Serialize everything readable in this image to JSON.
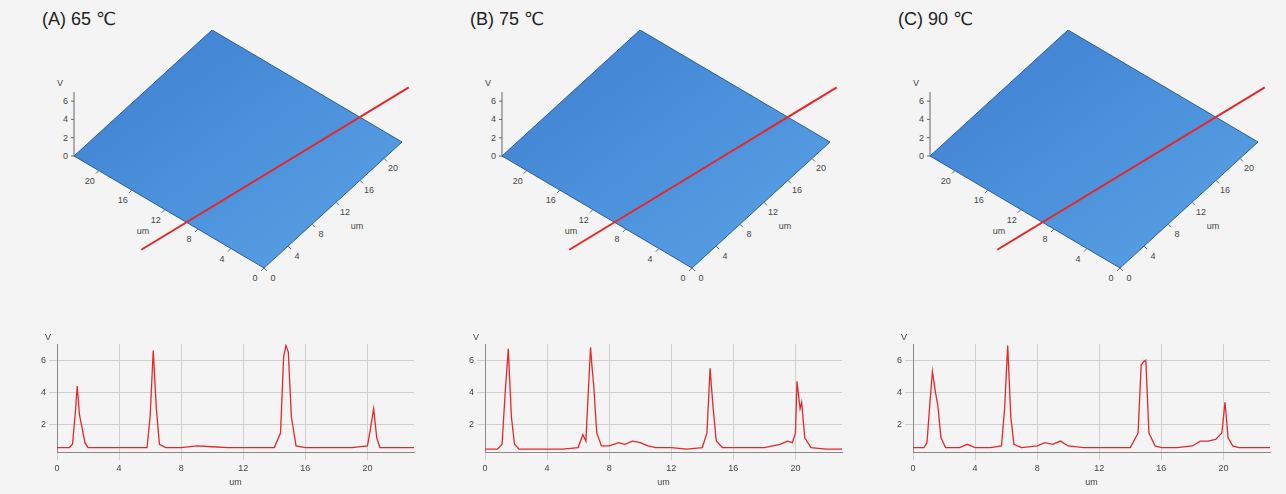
{
  "chart_data": [
    {
      "type": "line",
      "title": "(A) 65 ℃",
      "x_label": "um",
      "y_label": "V",
      "color": "#e8262a",
      "grid": true,
      "xlim": [
        0,
        23
      ],
      "ylim": [
        0.3,
        7
      ],
      "xticks": [
        0,
        4,
        8,
        12,
        16,
        20
      ],
      "yticks": [
        2,
        4,
        6
      ],
      "x": [
        0,
        0.8,
        1.0,
        1.2,
        1.3,
        1.45,
        1.6,
        1.8,
        2.0,
        3,
        4,
        5,
        5.8,
        6.0,
        6.2,
        6.4,
        6.6,
        7,
        8,
        9,
        10,
        11,
        12,
        13,
        14,
        14.4,
        14.6,
        14.75,
        14.9,
        15.1,
        15.4,
        16,
        17,
        18,
        19,
        20,
        20.2,
        20.4,
        20.6,
        20.8,
        21.5,
        22,
        23
      ],
      "values": [
        0.6,
        0.6,
        0.8,
        3.0,
        4.4,
        2.6,
        1.9,
        0.9,
        0.6,
        0.6,
        0.6,
        0.6,
        0.6,
        2.5,
        6.6,
        3.0,
        0.8,
        0.6,
        0.6,
        0.7,
        0.65,
        0.6,
        0.6,
        0.6,
        0.6,
        1.5,
        6.2,
        6.9,
        6.5,
        2.5,
        0.7,
        0.6,
        0.6,
        0.6,
        0.6,
        0.7,
        1.8,
        3.0,
        1.2,
        0.6,
        0.6,
        0.6,
        0.6
      ],
      "surface": {
        "z_label": "V",
        "zlim": [
          0,
          7
        ],
        "zticks": [
          0,
          2,
          4,
          6
        ],
        "x_label": "um",
        "xlim": [
          0,
          23
        ],
        "xticks": [
          0,
          4,
          8,
          12,
          16,
          20
        ],
        "y_label": "um",
        "ylim": [
          0,
          23
        ],
        "yticks": [
          0,
          4,
          8,
          12,
          16,
          20
        ]
      }
    },
    {
      "type": "line",
      "title": "(B)  75 ℃",
      "x_label": "um",
      "y_label": "V",
      "color": "#e8262a",
      "grid": true,
      "xlim": [
        0,
        23
      ],
      "ylim": [
        0.3,
        7
      ],
      "xticks": [
        0,
        4,
        8,
        12,
        16,
        20
      ],
      "yticks": [
        2,
        4,
        6
      ],
      "x": [
        0,
        0.8,
        1.1,
        1.3,
        1.5,
        1.7,
        1.9,
        2.2,
        3,
        4,
        5,
        6,
        6.3,
        6.5,
        6.6,
        6.8,
        6.9,
        7.0,
        7.2,
        7.5,
        8,
        8.6,
        9,
        9.5,
        10,
        10.5,
        11,
        12,
        13,
        14,
        14.3,
        14.5,
        14.7,
        14.9,
        15.3,
        16,
        17,
        18,
        19,
        19.5,
        19.8,
        20.0,
        20.1,
        20.3,
        20.4,
        20.6,
        21,
        22,
        23
      ],
      "values": [
        0.5,
        0.5,
        0.8,
        4.0,
        6.7,
        2.5,
        0.8,
        0.5,
        0.5,
        0.5,
        0.5,
        0.6,
        1.4,
        1.0,
        3.0,
        6.8,
        5.5,
        4.5,
        1.5,
        0.7,
        0.7,
        0.9,
        0.8,
        1.0,
        0.9,
        0.7,
        0.6,
        0.6,
        0.5,
        0.6,
        1.5,
        5.5,
        3.0,
        1.0,
        0.6,
        0.6,
        0.6,
        0.6,
        0.8,
        1.0,
        0.9,
        1.5,
        4.7,
        3.0,
        3.4,
        1.2,
        0.6,
        0.5,
        0.5
      ],
      "surface": {
        "z_label": "V",
        "zlim": [
          0,
          7
        ],
        "zticks": [
          0,
          2,
          4,
          6
        ],
        "x_label": "um",
        "xlim": [
          0,
          23
        ],
        "xticks": [
          0,
          4,
          8,
          12,
          16,
          20
        ],
        "y_label": "um",
        "ylim": [
          0,
          23
        ],
        "yticks": [
          0,
          4,
          8,
          12,
          16,
          20
        ]
      }
    },
    {
      "type": "line",
      "title": "(C) 90 ℃",
      "x_label": "um",
      "y_label": "V",
      "color": "#e8262a",
      "grid": true,
      "xlim": [
        0,
        23
      ],
      "ylim": [
        0.3,
        7
      ],
      "xticks": [
        0,
        4,
        8,
        12,
        16,
        20
      ],
      "yticks": [
        2,
        4,
        6
      ],
      "x": [
        0,
        0.7,
        0.9,
        1.1,
        1.25,
        1.45,
        1.6,
        1.8,
        2.1,
        3,
        3.5,
        4,
        5,
        5.7,
        5.9,
        6.1,
        6.3,
        6.5,
        7,
        8,
        8.5,
        9,
        9.5,
        10,
        11,
        12,
        13,
        14,
        14.5,
        14.7,
        14.85,
        15.0,
        15.2,
        15.6,
        16,
        17,
        18,
        18.5,
        19,
        19.5,
        19.9,
        20.1,
        20.3,
        20.6,
        21,
        22,
        23
      ],
      "values": [
        0.6,
        0.6,
        0.9,
        3.5,
        5.3,
        4.0,
        3.2,
        1.2,
        0.6,
        0.6,
        0.8,
        0.6,
        0.6,
        0.7,
        3.0,
        6.9,
        2.5,
        0.8,
        0.6,
        0.7,
        0.9,
        0.8,
        1.0,
        0.7,
        0.6,
        0.6,
        0.6,
        0.6,
        1.5,
        5.7,
        5.9,
        6.0,
        1.5,
        0.7,
        0.6,
        0.6,
        0.7,
        1.0,
        1.0,
        1.1,
        1.5,
        3.4,
        1.2,
        0.7,
        0.6,
        0.6,
        0.6
      ],
      "surface": {
        "z_label": "V",
        "zlim": [
          0,
          7
        ],
        "zticks": [
          0,
          2,
          4,
          6
        ],
        "x_label": "um",
        "xlim": [
          0,
          23
        ],
        "xticks": [
          0,
          4,
          8,
          12,
          16,
          20
        ],
        "y_label": "um",
        "ylim": [
          0,
          23
        ],
        "yticks": [
          0,
          4,
          8,
          12,
          16,
          20
        ]
      }
    }
  ]
}
